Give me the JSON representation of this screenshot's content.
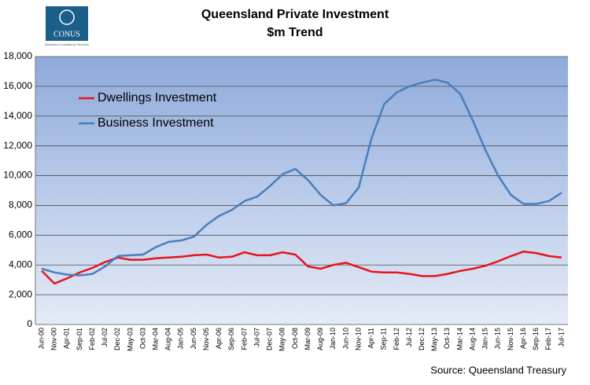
{
  "logo": {
    "name": "CONUS",
    "tagline": "Business Consultancy Services"
  },
  "chart_data": {
    "type": "line",
    "title": "Queensland Private Investment",
    "subtitle": "$m Trend",
    "source": "Source: Queensland Treasury",
    "categories": [
      "Jun-00",
      "Nov-00",
      "Apr-01",
      "Sep-01",
      "Feb-02",
      "Jul-02",
      "Dec-02",
      "May-03",
      "Oct-03",
      "Mar-04",
      "Aug-04",
      "Jan-05",
      "Jun-05",
      "Nov-05",
      "Apr-06",
      "Sep-06",
      "Feb-07",
      "Jul-07",
      "Dec-07",
      "May-08",
      "Oct-08",
      "Mar-09",
      "Aug-09",
      "Jan-10",
      "Jun-10",
      "Nov-10",
      "Apr-11",
      "Sep-11",
      "Feb-12",
      "Jul-12",
      "Dec-12",
      "May-13",
      "Oct-13",
      "Mar-14",
      "Aug-14",
      "Jan-15",
      "Jun-15",
      "Nov-15",
      "Apr-16",
      "Sep-16",
      "Feb-17",
      "Jul-17"
    ],
    "series": [
      {
        "name": "Dwellings Investment",
        "color": "#e8141b",
        "values": [
          3600,
          2750,
          3100,
          3500,
          3800,
          4200,
          4500,
          4350,
          4350,
          4450,
          4500,
          4550,
          4650,
          4700,
          4500,
          4550,
          4850,
          4650,
          4650,
          4850,
          4700,
          3900,
          3750,
          4000,
          4150,
          3850,
          3550,
          3500,
          3500,
          3400,
          3250,
          3250,
          3400,
          3600,
          3750,
          3950,
          4250,
          4600,
          4900,
          4800,
          4600,
          4500
        ]
      },
      {
        "name": "Business Investment",
        "color": "#4a7ebb",
        "values": [
          3750,
          3500,
          3350,
          3300,
          3400,
          3900,
          4600,
          4650,
          4700,
          5200,
          5550,
          5650,
          5900,
          6700,
          7300,
          7700,
          8300,
          8600,
          9300,
          10100,
          10450,
          9700,
          8700,
          8000,
          8150,
          9200,
          12500,
          14800,
          15600,
          16000,
          16250,
          16450,
          16250,
          15500,
          13700,
          11700,
          10000,
          8700,
          8100,
          8100,
          8300,
          8850
        ]
      }
    ],
    "ylim": [
      0,
      18000
    ],
    "yticks": [
      0,
      {
        "value": 2000,
        "label": "2,000"
      },
      {
        "value": 4000,
        "label": "4,000"
      },
      {
        "value": 6000,
        "label": "6,000"
      },
      {
        "value": 8000,
        "label": "8,000"
      },
      {
        "value": 10000,
        "label": "10,000"
      },
      {
        "value": 12000,
        "label": "12,000"
      },
      {
        "value": 14000,
        "label": "14,000"
      },
      {
        "value": 16000,
        "label": "16,000"
      },
      {
        "value": 18000,
        "label": "18,000"
      }
    ],
    "grid": true,
    "legend": "upper-left"
  }
}
